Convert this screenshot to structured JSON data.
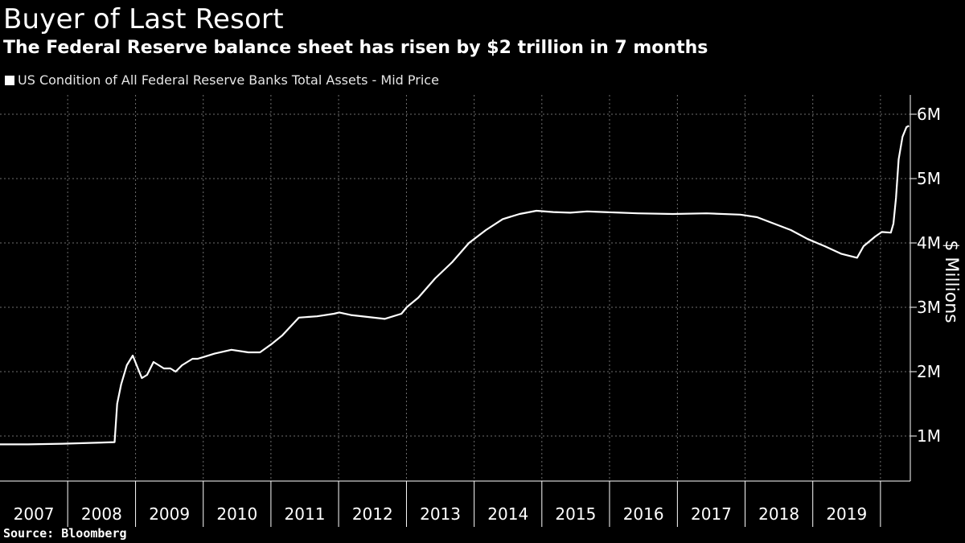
{
  "title": "Buyer of Last Resort",
  "subtitle": "The Federal Reserve balance sheet has risen by $2 trillion in 7 months",
  "legend": "US Condition of All Federal Reserve Banks Total Assets - Mid Price",
  "source": "Source: Bloomberg",
  "chart_data": {
    "type": "line",
    "title": "Buyer of Last Resort",
    "subtitle": "The Federal Reserve balance sheet has risen by $2 trillion in 7 months",
    "ylabel": "$ Millions",
    "xlabel": "",
    "y_unit": "Millions of dollars",
    "ylim": [
      300000,
      6300000
    ],
    "yticks": [
      1000000,
      2000000,
      3000000,
      4000000,
      5000000,
      6000000
    ],
    "ytick_labels": [
      "1M",
      "2M",
      "3M",
      "4M",
      "5M",
      "6M"
    ],
    "xtick_labels": [
      "2007",
      "2008",
      "2009",
      "2010",
      "2011",
      "2012",
      "2013",
      "2014",
      "2015",
      "2016",
      "2017",
      "2018",
      "2019"
    ],
    "xlim": [
      "2007-01-01",
      "2020-06-10"
    ],
    "grid": true,
    "legend_position": "top-left",
    "y_axis_side": "right",
    "line_color": "#ffffff",
    "series": [
      {
        "name": "US Condition of All Federal Reserve Banks Total Assets - Mid Price",
        "x": [
          "2007-01-01",
          "2007-06-01",
          "2007-12-01",
          "2008-06-01",
          "2008-09-10",
          "2008-09-24",
          "2008-10-15",
          "2008-11-15",
          "2008-12-17",
          "2009-01-07",
          "2009-02-04",
          "2009-03-04",
          "2009-04-08",
          "2009-05-06",
          "2009-06-03",
          "2009-07-08",
          "2009-08-05",
          "2009-09-09",
          "2009-10-07",
          "2009-11-04",
          "2009-12-02",
          "2010-01-06",
          "2010-03-03",
          "2010-06-02",
          "2010-09-01",
          "2010-11-03",
          "2011-01-05",
          "2011-03-02",
          "2011-06-01",
          "2011-09-07",
          "2011-12-07",
          "2012-01-04",
          "2012-03-07",
          "2012-06-06",
          "2012-09-05",
          "2012-12-05",
          "2013-01-02",
          "2013-03-06",
          "2013-06-05",
          "2013-09-04",
          "2013-12-04",
          "2014-03-05",
          "2014-06-04",
          "2014-09-03",
          "2014-12-03",
          "2015-03-04",
          "2015-06-03",
          "2015-09-02",
          "2015-12-02",
          "2016-06-01",
          "2016-12-07",
          "2017-06-07",
          "2017-12-06",
          "2018-03-07",
          "2018-06-06",
          "2018-09-05",
          "2018-12-05",
          "2019-03-06",
          "2019-06-05",
          "2019-08-28",
          "2019-10-02",
          "2019-12-04",
          "2020-01-08",
          "2020-02-26",
          "2020-03-11",
          "2020-03-25",
          "2020-04-08",
          "2020-04-29",
          "2020-05-20",
          "2020-06-03"
        ],
        "y": [
          870000,
          870000,
          880000,
          895000,
          905000,
          1500000,
          1800000,
          2100000,
          2250000,
          2100000,
          1900000,
          1950000,
          2150000,
          2100000,
          2050000,
          2050000,
          2000000,
          2100000,
          2150000,
          2200000,
          2200000,
          2230000,
          2280000,
          2340000,
          2300000,
          2300000,
          2430000,
          2560000,
          2840000,
          2860000,
          2900000,
          2920000,
          2880000,
          2850000,
          2820000,
          2900000,
          3000000,
          3150000,
          3450000,
          3700000,
          4000000,
          4200000,
          4370000,
          4450000,
          4500000,
          4480000,
          4470000,
          4490000,
          4480000,
          4460000,
          4450000,
          4460000,
          4440000,
          4400000,
          4300000,
          4200000,
          4060000,
          3950000,
          3830000,
          3770000,
          3950000,
          4100000,
          4170000,
          4160000,
          4300000,
          4700000,
          5300000,
          5650000,
          5800000,
          5820000
        ]
      }
    ]
  }
}
